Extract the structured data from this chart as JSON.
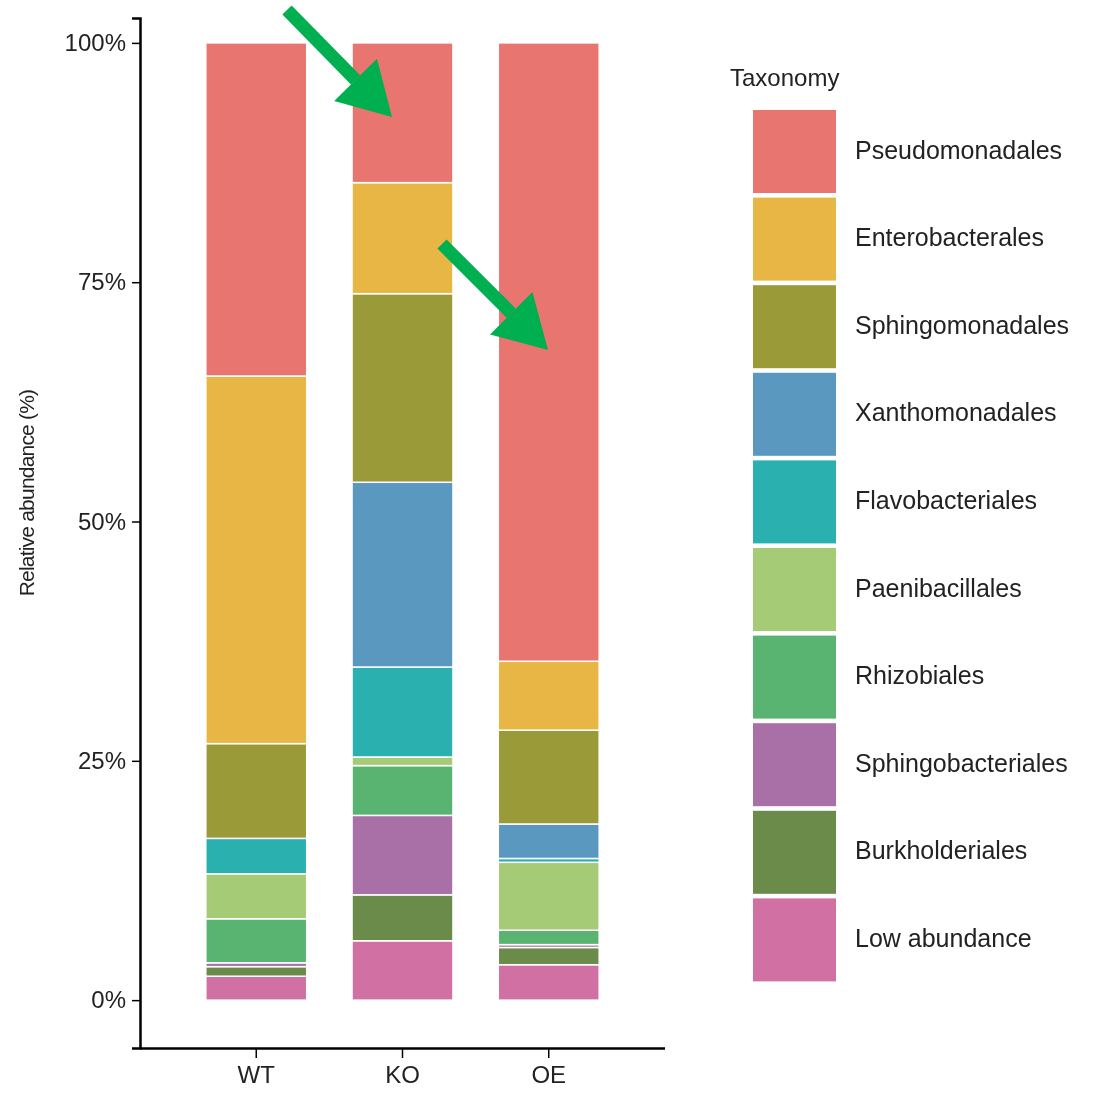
{
  "chart_data": {
    "type": "bar",
    "stacked": true,
    "ylabel": "Relative abundance (%)",
    "legend_title": "Taxonomy",
    "legend": "right",
    "categories": [
      "WT",
      "KO",
      "OE"
    ],
    "ylim": [
      -5,
      102.6
    ],
    "yticks": [
      {
        "value": 0,
        "label": "0%"
      },
      {
        "value": 25,
        "label": "25%"
      },
      {
        "value": 50,
        "label": "50%"
      },
      {
        "value": 75,
        "label": "75%"
      },
      {
        "value": 100,
        "label": "100%"
      }
    ],
    "series": [
      {
        "name": "Low abundance",
        "color": "#d170a3",
        "values": [
          2.5,
          6.2,
          3.7
        ]
      },
      {
        "name": "Burkholderiales",
        "color": "#6a8b4a",
        "values": [
          1.0,
          4.8,
          1.8
        ]
      },
      {
        "name": "Sphingobacteriales",
        "color": "#a970a8",
        "values": [
          0.4,
          8.3,
          0.3
        ]
      },
      {
        "name": "Rhizobiales",
        "color": "#5ab471",
        "values": [
          4.6,
          5.2,
          1.5
        ]
      },
      {
        "name": "Paenibacillales",
        "color": "#a6cb76",
        "values": [
          4.7,
          0.9,
          7.1
        ]
      },
      {
        "name": "Flavobacteriales",
        "color": "#2bb0b0",
        "values": [
          3.7,
          9.4,
          0.4
        ]
      },
      {
        "name": "Xanthomonadales",
        "color": "#5a98bf",
        "values": [
          0,
          19.3,
          3.6
        ]
      },
      {
        "name": "Sphingomonadales",
        "color": "#9a9a38",
        "values": [
          9.9,
          19.7,
          9.8
        ]
      },
      {
        "name": "Enterobacterales",
        "color": "#e8b645",
        "values": [
          38.4,
          11.6,
          7.2
        ]
      },
      {
        "name": "Pseudomonadales",
        "color": "#e8756f",
        "values": [
          34.8,
          14.6,
          64.6
        ]
      }
    ]
  }
}
